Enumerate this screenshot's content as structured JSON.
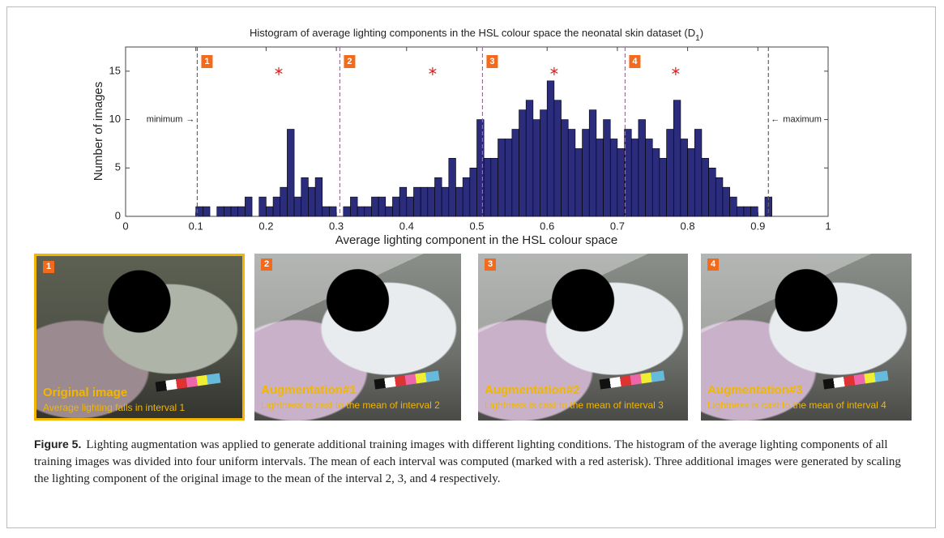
{
  "chart_data": {
    "type": "histogram",
    "title": [
      "Histogram of average lighting components in the HSL colour space the neonatal skin dataset (D",
      "1",
      ")"
    ],
    "x_label": "Average lighting component in the HSL colour space",
    "y_label": "Number of images",
    "bins": [
      0.1,
      0.11,
      0.12,
      0.13,
      0.14,
      0.15,
      0.16,
      0.17,
      0.18,
      0.19,
      0.2,
      0.21,
      0.22,
      0.23,
      0.24,
      0.25,
      0.26,
      0.27,
      0.28,
      0.29,
      0.3,
      0.31,
      0.32,
      0.33,
      0.34,
      0.35,
      0.36,
      0.37,
      0.38,
      0.39,
      0.4,
      0.41,
      0.42,
      0.43,
      0.44,
      0.45,
      0.46,
      0.47,
      0.48,
      0.49,
      0.5,
      0.51,
      0.52,
      0.53,
      0.54,
      0.55,
      0.56,
      0.57,
      0.58,
      0.59,
      0.6,
      0.61,
      0.62,
      0.63,
      0.64,
      0.65,
      0.66,
      0.67,
      0.68,
      0.69,
      0.7,
      0.71,
      0.72,
      0.73,
      0.74,
      0.75,
      0.76,
      0.77,
      0.78,
      0.79,
      0.8,
      0.81,
      0.82,
      0.83,
      0.84,
      0.85,
      0.86,
      0.87,
      0.88,
      0.89,
      0.9,
      0.91,
      0.92
    ],
    "values": [
      1,
      1,
      0,
      1,
      1,
      1,
      1,
      2,
      0,
      2,
      1,
      2,
      3,
      9,
      2,
      4,
      3,
      4,
      1,
      1,
      0,
      1,
      2,
      1,
      1,
      2,
      2,
      1,
      2,
      3,
      2,
      3,
      3,
      3,
      4,
      3,
      6,
      3,
      4,
      5,
      10,
      6,
      6,
      8,
      8,
      9,
      11,
      12,
      10,
      11,
      14,
      12,
      10,
      9,
      7,
      9,
      11,
      8,
      10,
      8,
      7,
      9,
      8,
      10,
      8,
      7,
      6,
      9,
      12,
      8,
      7,
      9,
      6,
      5,
      4,
      3,
      2,
      1,
      1,
      1,
      0,
      2
    ],
    "color": "#2b2d7c",
    "xlim": [
      0,
      1
    ],
    "xticks": [
      0,
      0.1,
      0.2,
      0.3,
      0.4,
      0.5,
      0.6,
      0.7,
      0.8,
      0.9,
      1
    ],
    "ylim": [
      0,
      17.5
    ],
    "yticks": [
      0,
      5,
      10,
      15
    ],
    "interval_bounds": [
      0.102,
      0.305,
      0.508,
      0.711,
      0.915
    ],
    "intervals": [
      {
        "label": "1",
        "mean_x": 0.218,
        "mean_y": 15
      },
      {
        "label": "2",
        "mean_x": 0.437,
        "mean_y": 15
      },
      {
        "label": "3",
        "mean_x": 0.61,
        "mean_y": 15
      },
      {
        "label": "4",
        "mean_x": 0.783,
        "mean_y": 15
      }
    ],
    "min_label": "minimum",
    "max_label": "maximum",
    "min_arrow": "→",
    "max_arrow": "←"
  },
  "panels": [
    {
      "number": "1",
      "title": "Original image",
      "text": "Average lighting falls in interval 1"
    },
    {
      "number": "2",
      "title": "Augmentation#1",
      "text": "Lightness is cast to the mean of interval 2"
    },
    {
      "number": "3",
      "title": "Augmentation#2",
      "text": "Lightness is cast to the mean of interval 3"
    },
    {
      "number": "4",
      "title": "Augmentation#3",
      "text": "Lightness is cast to the mean of interval 4"
    }
  ],
  "caption": {
    "label": "Figure 5.",
    "text": "Lighting augmentation was applied to generate additional training images with different lighting conditions. The histogram of the average lighting components of all training images was divided into four uniform intervals. The mean of each interval was computed (marked with a red asterisk). Three additional images were generated by scaling the lighting component of the original image to the mean of the interval 2, 3, and 4 respectively."
  }
}
